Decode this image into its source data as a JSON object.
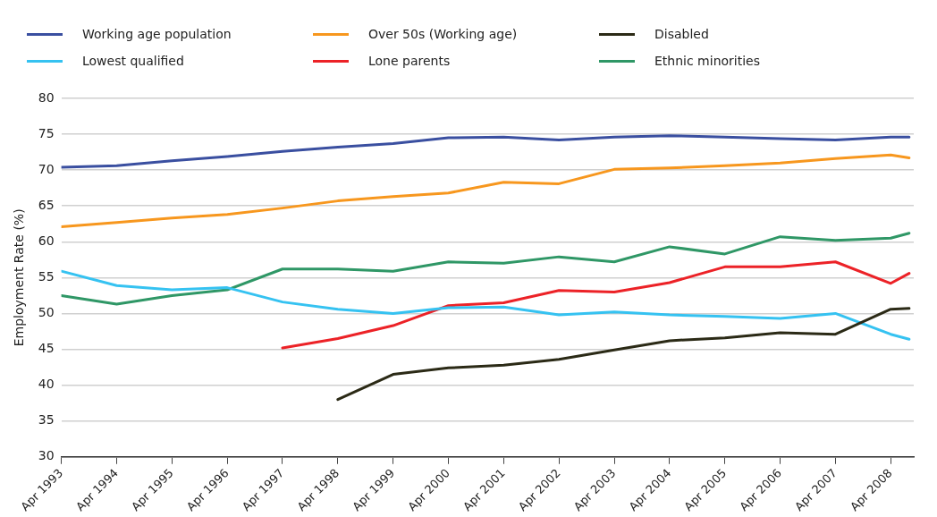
{
  "chart_data": {
    "type": "line",
    "ylabel": "Employment Rate (%)",
    "x": [
      "1993-04",
      "1994-04",
      "1995-04",
      "1996-04",
      "1997-04",
      "1998-04",
      "1999-04",
      "2000-04",
      "2001-04",
      "2002-04",
      "2003-04",
      "2004-04",
      "2005-04",
      "2006-04",
      "2007-04",
      "2008-04",
      "2008-08"
    ],
    "xlim": [
      "1993-04",
      "2008-09"
    ],
    "xticks": [
      {
        "value": "1993-04",
        "label": "Apr 1993"
      },
      {
        "value": "1994-04",
        "label": "Apr 1994"
      },
      {
        "value": "1995-04",
        "label": "Apr 1995"
      },
      {
        "value": "1996-04",
        "label": "Apr 1996"
      },
      {
        "value": "1997-04",
        "label": "Apr 1997"
      },
      {
        "value": "1998-04",
        "label": "Apr 1998"
      },
      {
        "value": "1999-04",
        "label": "Apr 1999"
      },
      {
        "value": "2000-04",
        "label": "Apr 2000"
      },
      {
        "value": "2001-04",
        "label": "Apr 2001"
      },
      {
        "value": "2002-04",
        "label": "Apr 2002"
      },
      {
        "value": "2003-04",
        "label": "Apr 2003"
      },
      {
        "value": "2004-04",
        "label": "Apr 2004"
      },
      {
        "value": "2005-04",
        "label": "Apr 2005"
      },
      {
        "value": "2006-04",
        "label": "Apr 2006"
      },
      {
        "value": "2007-04",
        "label": "Apr 2007"
      },
      {
        "value": "2008-04",
        "label": "Apr 2008"
      }
    ],
    "ylim": [
      30,
      80
    ],
    "yticks": [
      30,
      35,
      40,
      45,
      50,
      55,
      60,
      65,
      70,
      75,
      80
    ],
    "grid": "y",
    "legend": "top",
    "marker": "none",
    "line_style": "solid",
    "series": [
      {
        "name": "Working age population",
        "color": "#3a4fa0",
        "values": [
          70.4,
          70.6,
          71.3,
          71.9,
          72.6,
          73.2,
          73.7,
          74.5,
          74.6,
          74.2,
          74.6,
          74.8,
          74.6,
          74.4,
          74.2,
          74.6,
          74.6
        ]
      },
      {
        "name": "Over 50s (Working age)",
        "color": "#f7971e",
        "values": [
          62.1,
          62.7,
          63.3,
          63.8,
          64.7,
          65.7,
          66.3,
          66.8,
          68.3,
          68.1,
          70.1,
          70.3,
          70.6,
          71.0,
          71.6,
          72.1,
          71.7
        ]
      },
      {
        "name": "Disabled",
        "color": "#2b2a16",
        "values": [
          null,
          null,
          null,
          null,
          null,
          38.0,
          41.5,
          42.4,
          42.8,
          43.6,
          44.9,
          46.2,
          46.6,
          47.3,
          47.1,
          50.6,
          50.7
        ]
      },
      {
        "name": "Lowest qualified",
        "color": "#35c2f1",
        "values": [
          55.9,
          53.9,
          53.3,
          53.6,
          51.6,
          50.6,
          50.0,
          50.8,
          50.9,
          49.8,
          50.2,
          49.8,
          49.6,
          49.3,
          50.0,
          47.1,
          46.4
        ]
      },
      {
        "name": "Lone parents",
        "color": "#ec2227",
        "values": [
          null,
          null,
          null,
          null,
          45.2,
          46.5,
          48.3,
          51.1,
          51.5,
          53.2,
          53.0,
          54.3,
          56.5,
          56.5,
          57.2,
          54.2,
          55.6
        ]
      },
      {
        "name": "Ethnic minorities",
        "color": "#2f9766",
        "values": [
          52.5,
          51.3,
          52.5,
          53.3,
          56.2,
          56.2,
          55.9,
          57.2,
          57.0,
          57.9,
          57.2,
          59.3,
          58.3,
          60.7,
          60.2,
          60.5,
          61.2
        ]
      }
    ]
  }
}
